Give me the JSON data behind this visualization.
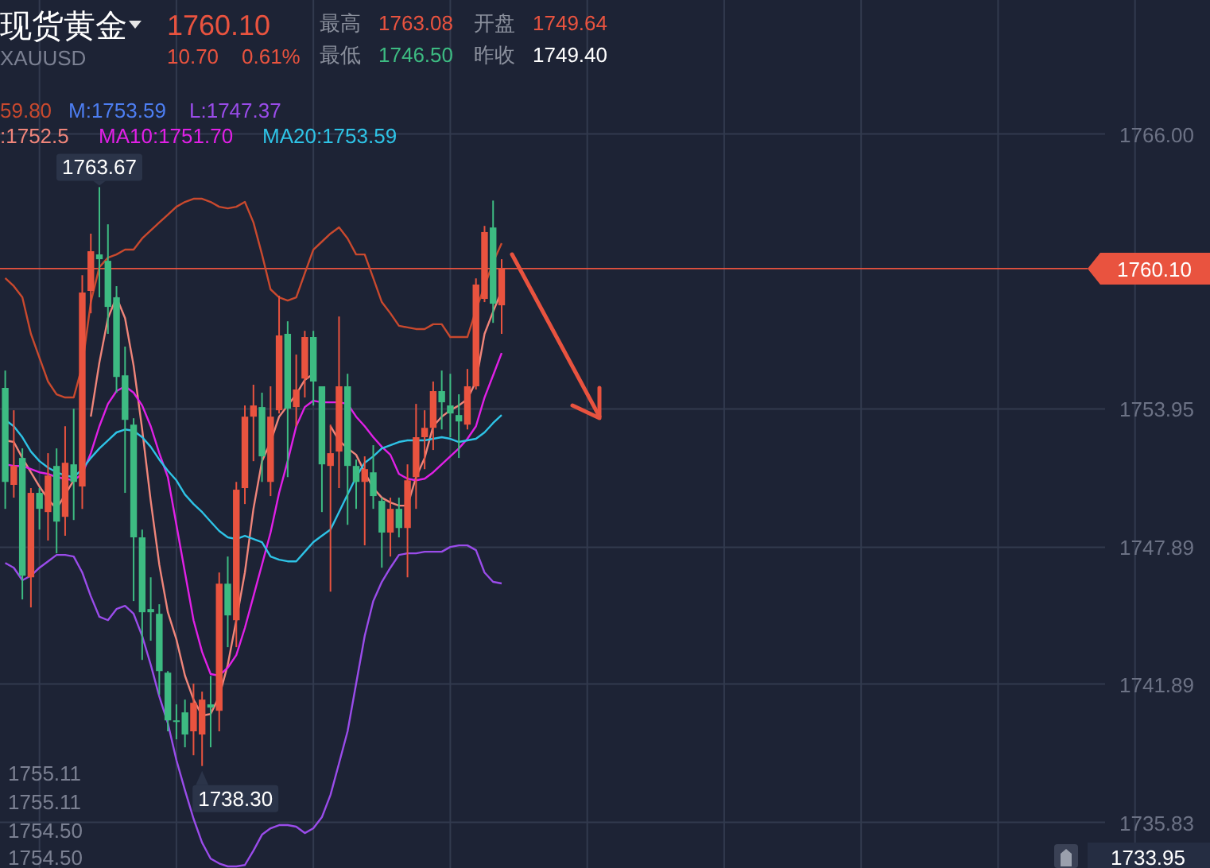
{
  "chart_data": {
    "type": "candlestick",
    "title": "现货黄金",
    "subtitle": "XAUUSD",
    "categories": [
      null,
      null,
      null,
      null,
      null,
      null,
      null,
      null,
      null,
      null,
      null,
      null,
      null,
      null,
      null,
      null,
      null,
      null,
      null,
      null,
      null,
      null,
      null,
      null,
      null,
      null,
      null,
      null,
      null,
      null,
      null,
      null,
      null,
      null,
      null,
      null,
      null,
      null,
      null,
      null,
      null,
      null,
      null,
      null,
      null,
      null,
      null,
      null,
      null,
      null,
      null,
      null,
      null,
      null,
      null,
      null,
      null,
      null,
      null,
      null,
      null,
      null,
      null,
      null,
      null,
      null,
      null,
      null,
      null,
      null,
      null,
      null,
      null,
      null,
      null,
      null,
      null,
      null,
      null,
      null,
      null,
      null,
      null,
      null,
      null,
      null,
      null,
      null,
      null,
      null,
      null,
      null,
      null,
      null,
      null,
      null,
      null,
      null,
      null,
      null,
      null,
      null,
      null,
      null,
      null,
      null,
      null,
      null,
      null,
      null,
      null,
      null,
      null,
      null,
      null,
      null,
      null,
      null,
      null,
      null,
      null,
      null,
      null,
      null,
      null,
      null,
      null,
      null,
      null
    ],
    "ohlc": [
      [
        1754.87,
        1755.63,
        1749.57,
        1750.75
      ],
      [
        1750.62,
        1753.89,
        1750.06,
        1751.45
      ],
      [
        1751.8,
        1752.22,
        1745.6,
        1746.64
      ],
      [
        1746.57,
        1750.48,
        1745.25,
        1750.27
      ],
      [
        1750.27,
        1750.48,
        1748.66,
        1749.57
      ],
      [
        1749.43,
        1752.01,
        1748.18,
        1751.03
      ],
      [
        1751.45,
        1752.22,
        1747.62,
        1749.01
      ],
      [
        1749.22,
        1753.19,
        1748.39,
        1751.59
      ],
      [
        1751.52,
        1753.96,
        1749.08,
        1750.75
      ],
      [
        1750.55,
        1759.81,
        1749.57,
        1759.05
      ],
      [
        1759.12,
        1761.63,
        1758.14,
        1760.86
      ],
      [
        1760.72,
        1763.67,
        1758.84,
        1760.51
      ],
      [
        1760.44,
        1762.04,
        1757.24,
        1758.42
      ],
      [
        1758.84,
        1759.33,
        1754.66,
        1755.35
      ],
      [
        1755.42,
        1756.68,
        1750.27,
        1753.47
      ],
      [
        1753.26,
        1753.54,
        1745.53,
        1748.32
      ],
      [
        1748.32,
        1748.66,
        1742.95,
        1745.04
      ],
      [
        1745.18,
        1746.57,
        1743.79,
        1745.04
      ],
      [
        1744.97,
        1745.39,
        1741.42,
        1742.46
      ],
      [
        1742.39,
        1742.46,
        1739.82,
        1740.3
      ],
      [
        1740.3,
        1741.0,
        1739.47,
        1740.23
      ],
      [
        1740.65,
        1741.21,
        1739.12,
        1739.68
      ],
      [
        1739.82,
        1741.91,
        1738.77,
        1741.07
      ],
      [
        1739.68,
        1741.56,
        1738.3,
        1741.21
      ],
      [
        1741.0,
        1742.25,
        1739.12,
        1740.86
      ],
      [
        1740.72,
        1746.78,
        1739.82,
        1746.29
      ],
      [
        1746.29,
        1747.48,
        1743.51,
        1744.9
      ],
      [
        1744.69,
        1750.75,
        1743.51,
        1750.41
      ],
      [
        1750.48,
        1754.1,
        1749.78,
        1753.61
      ],
      [
        1753.61,
        1755.01,
        1751.66,
        1754.1
      ],
      [
        1754.03,
        1754.66,
        1750.75,
        1751.87
      ],
      [
        1750.75,
        1754.94,
        1750.13,
        1753.61
      ],
      [
        1753.89,
        1758.91,
        1753.75,
        1757.17
      ],
      [
        1757.24,
        1757.79,
        1750.96,
        1753.96
      ],
      [
        1754.03,
        1756.33,
        1753.19,
        1754.8
      ],
      [
        1755.28,
        1757.37,
        1754.45,
        1757.1
      ],
      [
        1757.1,
        1757.37,
        1754.1,
        1755.15
      ],
      [
        1754.94,
        1754.94,
        1749.43,
        1751.52
      ],
      [
        1751.45,
        1753.26,
        1745.94,
        1752.01
      ],
      [
        1752.08,
        1758.0,
        1750.48,
        1754.94
      ],
      [
        1754.94,
        1755.49,
        1748.87,
        1751.45
      ],
      [
        1751.45,
        1751.73,
        1749.57,
        1750.75
      ],
      [
        1750.75,
        1751.87,
        1747.97,
        1751.31
      ],
      [
        1751.17,
        1752.36,
        1749.57,
        1750.13
      ],
      [
        1749.92,
        1750.06,
        1746.99,
        1748.53
      ],
      [
        1748.53,
        1750.06,
        1747.48,
        1749.57
      ],
      [
        1749.57,
        1750.06,
        1748.32,
        1748.73
      ],
      [
        1748.73,
        1751.52,
        1746.57,
        1750.82
      ],
      [
        1750.96,
        1754.17,
        1749.57,
        1752.71
      ],
      [
        1752.71,
        1753.89,
        1751.31,
        1753.12
      ],
      [
        1753.12,
        1755.15,
        1752.15,
        1754.73
      ],
      [
        1754.73,
        1755.63,
        1753.05,
        1754.24
      ],
      [
        1754.1,
        1755.49,
        1752.71,
        1753.75
      ],
      [
        1753.68,
        1754.59,
        1751.8,
        1753.4
      ],
      [
        1753.26,
        1755.7,
        1753.05,
        1754.94
      ],
      [
        1754.94,
        1759.67,
        1754.8,
        1759.4
      ],
      [
        1758.77,
        1761.97,
        1758.63,
        1761.7
      ],
      [
        1761.9,
        1763.08,
        1757.72,
        1758.56
      ],
      [
        1758.49,
        1760.51,
        1757.24,
        1760.1
      ],
      null,
      null,
      null,
      null,
      null,
      null,
      null,
      null,
      null,
      null,
      null,
      null,
      null,
      null,
      null,
      null,
      null,
      null,
      null,
      null,
      null,
      null,
      null,
      null,
      null,
      null,
      null,
      null,
      null,
      null,
      null,
      null,
      null,
      null,
      null,
      null,
      null,
      null,
      null,
      null,
      null,
      null,
      null,
      null,
      null,
      null,
      null,
      null,
      null,
      null,
      null,
      null,
      null,
      null,
      null,
      null,
      null,
      null,
      null,
      null,
      null,
      null,
      null,
      null,
      null,
      null,
      null,
      null,
      null,
      null
    ],
    "colors": [
      "#3dbb82",
      "#e9533f",
      "#3dbb82",
      "#e9533f",
      "#3dbb82",
      "#e9533f",
      "#3dbb82",
      "#e9533f",
      "#3dbb82",
      "#e9533f",
      "#e9533f",
      "#3dbb82",
      "#3dbb82",
      "#3dbb82",
      "#3dbb82",
      "#3dbb82",
      "#3dbb82",
      "#3dbb82",
      "#3dbb82",
      "#3dbb82",
      "#3dbb82",
      "#3dbb82",
      "#e9533f",
      "#e9533f",
      "#3dbb82",
      "#e9533f",
      "#3dbb82",
      "#e9533f",
      "#e9533f",
      "#e9533f",
      "#3dbb82",
      "#e9533f",
      "#e9533f",
      "#3dbb82",
      "#e9533f",
      "#e9533f",
      "#3dbb82",
      "#3dbb82",
      "#e9533f",
      "#e9533f",
      "#3dbb82",
      "#3dbb82",
      "#e9533f",
      "#3dbb82",
      "#3dbb82",
      "#e9533f",
      "#3dbb82",
      "#e9533f",
      "#e9533f",
      "#e9533f",
      "#e9533f",
      "#3dbb82",
      "#3dbb82",
      "#3dbb82",
      "#e9533f",
      "#e9533f",
      "#e9533f",
      "#3dbb82",
      "#e9533f",
      null,
      null,
      null,
      null,
      null,
      null,
      null,
      null,
      null,
      null,
      null,
      null,
      null,
      null,
      null,
      null,
      null,
      null,
      null,
      null,
      null,
      null,
      null,
      null,
      null,
      null,
      null,
      null,
      null,
      null,
      null,
      null,
      null,
      null,
      null,
      null,
      null,
      null,
      null,
      null,
      null,
      null,
      null,
      null,
      null,
      null,
      null,
      null,
      null,
      null,
      null,
      null,
      null,
      null,
      null,
      null,
      null,
      null,
      null,
      null,
      null,
      null,
      null,
      null,
      null,
      null,
      null,
      null,
      null,
      null
    ],
    "series": [
      {
        "type": "line",
        "name": "59.80",
        "color": "#c9492e",
        "values": [
          1759.68,
          1759.33,
          1758.84,
          1757.24,
          1756.19,
          1755.15,
          1754.59,
          1754.45,
          1754.45,
          1755.84,
          1758.63,
          1760.16,
          1760.58,
          1760.72,
          1760.93,
          1760.93,
          1761.42,
          1761.77,
          1762.12,
          1762.46,
          1762.81,
          1763.02,
          1763.16,
          1763.16,
          1763.02,
          1762.81,
          1762.74,
          1762.81,
          1763.02,
          1762.12,
          1760.72,
          1759.19,
          1758.84,
          1758.7,
          1758.84,
          1759.89,
          1760.93,
          1761.28,
          1761.63,
          1761.91,
          1761.42,
          1760.72,
          1760.72,
          1759.68,
          1758.63,
          1758.14,
          1757.59,
          1757.52,
          1757.45,
          1757.45,
          1757.66,
          1757.66,
          1757.1,
          1757.1,
          1757.1,
          1758.28,
          1759.33,
          1760.37,
          1761.21,
          null,
          null,
          null,
          null,
          null,
          null,
          null,
          null,
          null,
          null,
          null,
          null,
          null,
          null,
          null,
          null,
          null,
          null,
          null,
          null,
          null,
          null,
          null,
          null,
          null,
          null,
          null,
          null,
          null,
          null,
          null,
          null,
          null,
          null,
          null,
          null,
          null,
          null,
          null,
          null,
          null,
          null,
          null,
          null,
          null,
          null,
          null,
          null,
          null,
          null,
          null,
          null,
          null,
          null,
          null,
          null,
          null,
          null,
          null,
          null,
          null,
          null,
          null,
          null,
          null,
          null,
          null,
          null,
          null,
          null
        ]
      },
      {
        "type": "line",
        "name": "L:1747.37",
        "color": "#9a4cea",
        "values": [
          1747.2,
          1746.99,
          1746.44,
          1746.64,
          1746.99,
          1747.27,
          1747.55,
          1747.55,
          1747.48,
          1746.78,
          1745.74,
          1744.84,
          1744.69,
          1745.18,
          1745.32,
          1744.97,
          1744.0,
          1742.74,
          1741.35,
          1740.17,
          1738.56,
          1737.24,
          1735.99,
          1734.94,
          1734.24,
          1734.03,
          1733.9,
          1733.9,
          1733.96,
          1734.59,
          1735.29,
          1735.57,
          1735.71,
          1735.71,
          1735.64,
          1735.36,
          1735.57,
          1736.06,
          1737.03,
          1738.42,
          1739.82,
          1741.91,
          1744.0,
          1745.53,
          1746.37,
          1746.99,
          1747.55,
          1747.62,
          1747.62,
          1747.69,
          1747.69,
          1747.69,
          1747.9,
          1747.97,
          1747.97,
          1747.76,
          1746.78,
          1746.37,
          1746.3,
          null,
          null,
          null,
          null,
          null,
          null,
          null,
          null,
          null,
          null,
          null,
          null,
          null,
          null,
          null,
          null,
          null,
          null,
          null,
          null,
          null,
          null,
          null,
          null,
          null,
          null,
          null,
          null,
          null,
          null,
          null,
          null,
          null,
          null,
          null,
          null,
          null,
          null,
          null,
          null,
          null,
          null,
          null,
          null,
          null,
          null,
          null,
          null,
          null,
          null,
          null,
          null,
          null,
          null,
          null,
          null,
          null,
          null,
          null,
          null,
          null,
          null,
          null,
          null,
          null,
          null,
          null,
          null,
          null,
          null
        ]
      },
      {
        "type": "line",
        "name": ":1752.5",
        "color": "#f0857a",
        "values": [
          1752.57,
          1752.5,
          1751.8,
          1751.17,
          1750.55,
          1749.99,
          1749.57,
          1750.2,
          1750.82,
          null,
          1753.61,
          1755.98,
          1757.93,
          1758.84,
          1757.93,
          1755.84,
          1753.05,
          1749.92,
          1747.13,
          1745.04,
          1743.85,
          1742.26,
          1741.21,
          1740.51,
          1740.58,
          1741.35,
          1742.74,
          1744.69,
          1746.78,
          1749.57,
          1751.66,
          1752.5,
          1753.61,
          1754.1,
          1754.59,
          1755.22,
          1755.49,
          null,
          1753.19,
          1752.57,
          1752.22,
          1751.94,
          1751.17,
          1750.48,
          1750.06,
          1749.85,
          1749.71,
          1749.71,
          1750.96,
          1751.8,
          1753.19,
          1753.61,
          1753.89,
          1754.1,
          1754.38,
          1755.15,
          1757.24,
          1758.21,
          1759.12,
          null,
          null,
          null,
          null,
          null,
          null,
          null,
          null,
          null,
          null,
          null,
          null,
          null,
          null,
          null,
          null,
          null,
          null,
          null,
          null,
          null,
          null,
          null,
          null,
          null,
          null,
          null,
          null,
          null,
          null,
          null,
          null,
          null,
          null,
          null,
          null,
          null,
          null,
          null,
          null,
          null,
          null,
          null,
          null,
          null,
          null,
          null,
          null,
          null,
          null,
          null,
          null,
          null,
          null,
          null,
          null,
          null,
          null,
          null,
          null,
          null,
          null,
          null,
          null,
          null,
          null,
          null,
          null,
          null,
          null
        ]
      },
      {
        "type": "line",
        "name": "MA10:1751.70",
        "color": "#e020e6",
        "values": [
          1751.52,
          1751.45,
          1751.45,
          1751.31,
          1751.17,
          1751.1,
          1750.96,
          1750.89,
          1750.82,
          1751.1,
          1752.01,
          1753.19,
          1754.17,
          1754.73,
          1754.94,
          1754.66,
          1754.1,
          1753.19,
          1752.01,
          1750.96,
          1748.87,
          1746.78,
          1744.69,
          1743.3,
          1742.33,
          1742.26,
          1742.61,
          1743.16,
          1744.35,
          1745.74,
          1747.13,
          1748.53,
          1750.27,
          1751.66,
          1753.19,
          1754.03,
          1754.31,
          1754.24,
          1754.24,
          1754.24,
          1754.17,
          1753.61,
          1753.19,
          1752.71,
          1752.29,
          1751.94,
          1751.1,
          1750.89,
          1750.82,
          1750.89,
          1751.17,
          1751.52,
          1751.87,
          1752.22,
          1752.64,
          1753.19,
          1754.45,
          1755.42,
          1756.4,
          null,
          null,
          null,
          null,
          null,
          null,
          null,
          null,
          null,
          null,
          null,
          null,
          null,
          null,
          null,
          null,
          null,
          null,
          null,
          null,
          null,
          null,
          null,
          null,
          null,
          null,
          null,
          null,
          null,
          null,
          null,
          null,
          null,
          null,
          null,
          null,
          null,
          null,
          null,
          null,
          null,
          null,
          null,
          null,
          null,
          null,
          null,
          null,
          null,
          null,
          null,
          null,
          null,
          null,
          null,
          null,
          null,
          null,
          null,
          null,
          null,
          null,
          null,
          null,
          null,
          null,
          null,
          null,
          null,
          null
        ]
      },
      {
        "type": "line",
        "name": "MA20:1753.59",
        "color": "#2ec3e6",
        "values": [
          1753.47,
          1753.19,
          1752.71,
          1752.08,
          1751.66,
          1751.38,
          1751.17,
          1751.03,
          1750.96,
          1751.31,
          1751.8,
          1752.22,
          1752.57,
          1752.92,
          1753.05,
          1752.99,
          1752.71,
          1752.29,
          1751.73,
          1751.24,
          1750.82,
          1750.2,
          1749.78,
          1749.43,
          1749.01,
          1748.6,
          1748.32,
          1748.25,
          1748.39,
          1748.25,
          1748.11,
          1747.48,
          1747.34,
          1747.27,
          1747.27,
          1747.69,
          1748.11,
          1748.39,
          1748.66,
          1749.43,
          1750.2,
          1750.96,
          1751.59,
          1751.87,
          1752.22,
          1752.36,
          1752.5,
          1752.57,
          1752.57,
          1752.57,
          1752.64,
          1752.71,
          1752.64,
          1752.5,
          1752.57,
          1752.64,
          1752.92,
          1753.33,
          1753.68,
          null,
          null,
          null,
          null,
          null,
          null,
          null,
          null,
          null,
          null,
          null,
          null,
          null,
          null,
          null,
          null,
          null,
          null,
          null,
          null,
          null,
          null,
          null,
          null,
          null,
          null,
          null,
          null,
          null,
          null,
          null,
          null,
          null,
          null,
          null,
          null,
          null,
          null,
          null,
          null,
          null,
          null,
          null,
          null,
          null,
          null,
          null,
          null,
          null,
          null,
          null,
          null,
          null,
          null,
          null,
          null,
          null,
          null,
          null,
          null,
          null,
          null,
          null,
          null,
          null,
          null,
          null,
          null,
          null,
          null
        ]
      }
    ],
    "ylim": [
      1733.83,
      1771.87
    ],
    "yticks": [
      {
        "value": 1766.0,
        "label": "1766.00"
      },
      {
        "value": 1753.95,
        "label": "1753.95"
      },
      {
        "value": 1747.89,
        "label": "1747.89"
      },
      {
        "value": 1741.89,
        "label": "1741.89"
      },
      {
        "value": 1735.83,
        "label": "1735.83"
      }
    ],
    "ref_lines": [
      {
        "axis": "y",
        "value": 1760.1,
        "label": "1760.10",
        "color": "#e9533f"
      }
    ],
    "grid": true,
    "legend": "top left",
    "annotations": [
      "1760.10",
      "10.70",
      "0.61%",
      "最高",
      "1763.08",
      "开盘",
      "1749.64",
      "最低",
      "1746.50",
      "昨收",
      "1749.40",
      "M:1753.59",
      "1755.11",
      "1755.11",
      "1754.50",
      "1754.50",
      "1733.95",
      "1763.67",
      "1738.30"
    ]
  }
}
